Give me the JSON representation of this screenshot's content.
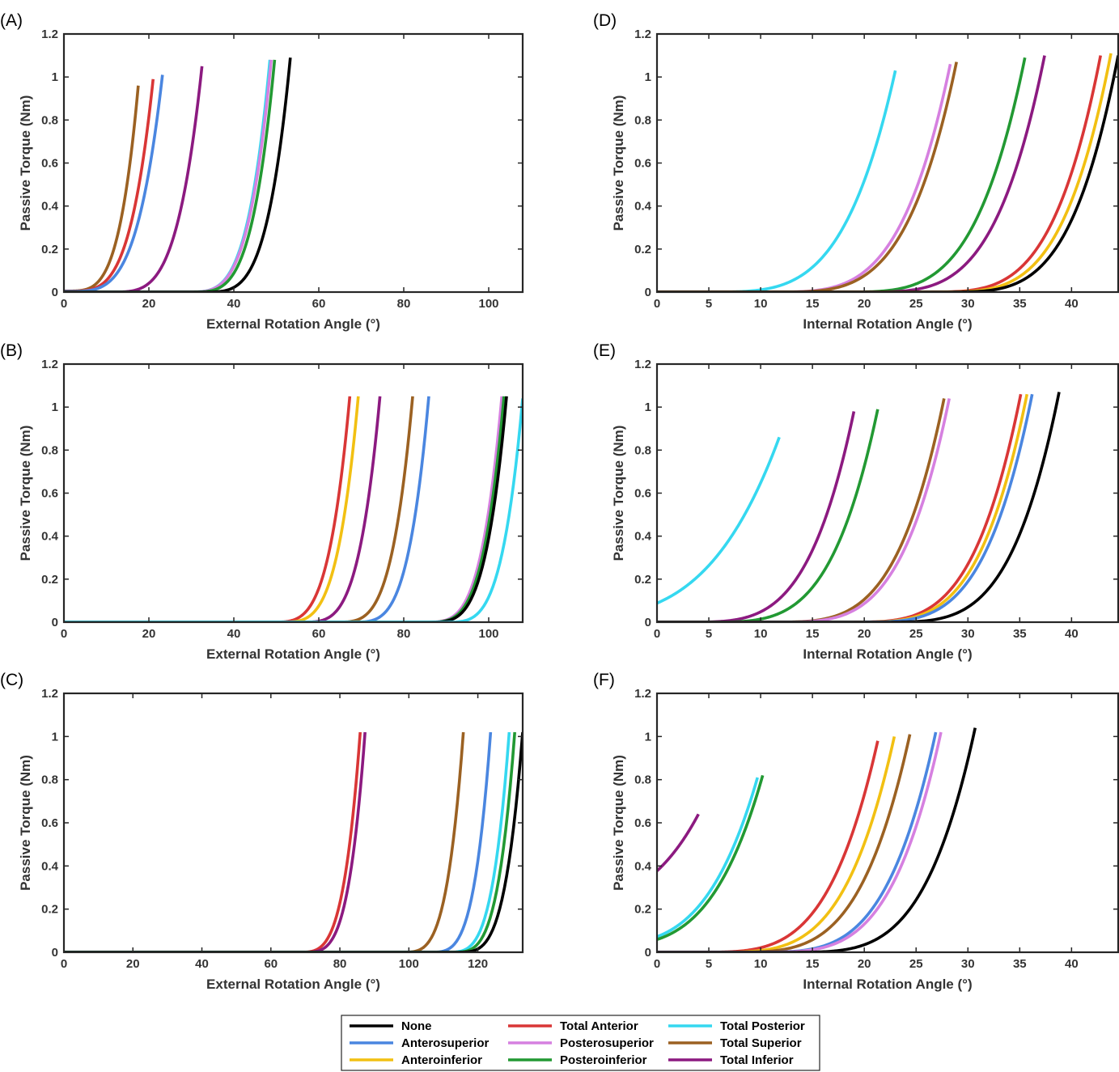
{
  "colors": {
    "None": "#000000",
    "Anterosuperior": "#4a86e0",
    "Anteroinferior": "#f2c012",
    "Total Anterior": "#d93636",
    "Posterosuperior": "#d680e0",
    "Posteroinferior": "#229933",
    "Total Posterior": "#35d8f0",
    "Total Superior": "#9b6122",
    "Total Inferior": "#8c1a80"
  },
  "legend": [
    "None",
    "Total Anterior",
    "Total Posterior",
    "Anterosuperior",
    "Posterosuperior",
    "Total Superior",
    "Anteroinferior",
    "Posteroinferior",
    "Total Inferior"
  ],
  "chart_data": [
    {
      "panel": "(A)",
      "type": "line",
      "xlabel": "External Rotation Angle (°)",
      "ylabel": "Passive Torque (Nm)",
      "xlim": [
        0,
        108
      ],
      "ylim": [
        0,
        1.2
      ],
      "xticks": [
        0,
        20,
        40,
        60,
        80,
        100
      ],
      "yticks": [
        0,
        0.2,
        0.4,
        0.6,
        0.8,
        1,
        1.2
      ],
      "series": [
        {
          "name": "Total Superior",
          "onset": 0,
          "end_x": 17.5,
          "end_y": 0.96,
          "y0": 0.005
        },
        {
          "name": "Total Anterior",
          "onset": 0,
          "end_x": 21.0,
          "end_y": 0.99,
          "y0": 0.004
        },
        {
          "name": "Anterosuperior",
          "onset": 0,
          "end_x": 23.2,
          "end_y": 1.01,
          "y0": 0.003
        },
        {
          "name": "Total Inferior",
          "onset": 10,
          "end_x": 32.5,
          "end_y": 1.05,
          "y0": 0
        },
        {
          "name": "Total Posterior",
          "onset": 28,
          "end_x": 48.5,
          "end_y": 1.08,
          "y0": 0
        },
        {
          "name": "Posterosuperior",
          "onset": 28,
          "end_x": 48.8,
          "end_y": 1.08,
          "y0": 0
        },
        {
          "name": "Posteroinferior",
          "onset": 29,
          "end_x": 49.6,
          "end_y": 1.08,
          "y0": 0
        },
        {
          "name": "None",
          "onset": 32,
          "end_x": 53.3,
          "end_y": 1.09,
          "y0": 0
        }
      ]
    },
    {
      "panel": "(B)",
      "type": "line",
      "xlabel": "External Rotation Angle (°)",
      "ylabel": "Passive Torque (Nm)",
      "xlim": [
        0,
        108
      ],
      "ylim": [
        0,
        1.2
      ],
      "xticks": [
        0,
        20,
        40,
        60,
        80,
        100
      ],
      "yticks": [
        0,
        0.2,
        0.4,
        0.6,
        0.8,
        1,
        1.2
      ],
      "series": [
        {
          "name": "Total Anterior",
          "onset": 48,
          "end_x": 67.3,
          "end_y": 1.05,
          "y0": 0
        },
        {
          "name": "Anteroinferior",
          "onset": 50,
          "end_x": 69.3,
          "end_y": 1.05,
          "y0": 0
        },
        {
          "name": "Total Inferior",
          "onset": 55,
          "end_x": 74.4,
          "end_y": 1.05,
          "y0": 0
        },
        {
          "name": "Total Superior",
          "onset": 63,
          "end_x": 82.1,
          "end_y": 1.05,
          "y0": 0
        },
        {
          "name": "Anterosuperior",
          "onset": 67,
          "end_x": 85.9,
          "end_y": 1.05,
          "y0": 0
        },
        {
          "name": "Posterosuperior",
          "onset": 84,
          "end_x": 103.1,
          "end_y": 1.05,
          "y0": 0
        },
        {
          "name": "Posteroinferior",
          "onset": 84.5,
          "end_x": 103.6,
          "end_y": 1.05,
          "y0": 0
        },
        {
          "name": "None",
          "onset": 85,
          "end_x": 104.2,
          "end_y": 1.05,
          "y0": 0
        },
        {
          "name": "Total Posterior",
          "onset": 89,
          "end_x": 108.0,
          "end_y": 1.04,
          "y0": 0
        }
      ]
    },
    {
      "panel": "(C)",
      "type": "line",
      "xlabel": "External Rotation Angle (°)",
      "ylabel": "Passive Torque (Nm)",
      "xlim": [
        0,
        133
      ],
      "ylim": [
        0,
        1.2
      ],
      "xticks": [
        0,
        20,
        40,
        60,
        80,
        100,
        120
      ],
      "yticks": [
        0,
        0.2,
        0.4,
        0.6,
        0.8,
        1,
        1.2
      ],
      "series": [
        {
          "name": "Total Anterior",
          "onset": 67,
          "end_x": 85.9,
          "end_y": 1.02,
          "y0": 0
        },
        {
          "name": "Total Inferior",
          "onset": 68.5,
          "end_x": 87.3,
          "end_y": 1.02,
          "y0": 0
        },
        {
          "name": "Total Superior",
          "onset": 97,
          "end_x": 115.8,
          "end_y": 1.02,
          "y0": 0
        },
        {
          "name": "Anterosuperior",
          "onset": 105,
          "end_x": 123.7,
          "end_y": 1.02,
          "y0": 0
        },
        {
          "name": "Total Posterior",
          "onset": 110,
          "end_x": 129.1,
          "end_y": 1.02,
          "y0": 0
        },
        {
          "name": "Posteroinferior",
          "onset": 111.5,
          "end_x": 130.7,
          "end_y": 1.02,
          "y0": 0
        },
        {
          "name": "None",
          "onset": 113,
          "end_x": 133.0,
          "end_y": 1.02,
          "y0": 0
        }
      ]
    },
    {
      "panel": "(D)",
      "type": "line",
      "xlabel": "Internal Rotation Angle (°)",
      "ylabel": "Passive Torque (Nm)",
      "xlim": [
        0,
        44.5
      ],
      "ylim": [
        0,
        1.2
      ],
      "xticks": [
        0,
        5,
        10,
        15,
        20,
        25,
        30,
        35,
        40
      ],
      "yticks": [
        0,
        0.2,
        0.4,
        0.6,
        0.8,
        1,
        1.2
      ],
      "series": [
        {
          "name": "Total Posterior",
          "onset": 4,
          "end_x": 23.0,
          "end_y": 1.03,
          "y0": 0
        },
        {
          "name": "Posterosuperior",
          "onset": 10,
          "end_x": 28.3,
          "end_y": 1.06,
          "y0": 0
        },
        {
          "name": "Total Superior",
          "onset": 10.5,
          "end_x": 28.9,
          "end_y": 1.07,
          "y0": 0
        },
        {
          "name": "Posteroinferior",
          "onset": 17,
          "end_x": 35.5,
          "end_y": 1.09,
          "y0": 0
        },
        {
          "name": "Total Inferior",
          "onset": 19,
          "end_x": 37.4,
          "end_y": 1.1,
          "y0": 0
        },
        {
          "name": "Total Anterior",
          "onset": 25,
          "end_x": 42.8,
          "end_y": 1.1,
          "y0": 0
        },
        {
          "name": "Anteroinferior",
          "onset": 26,
          "end_x": 43.8,
          "end_y": 1.11,
          "y0": 0
        },
        {
          "name": "None",
          "onset": 27,
          "end_x": 44.5,
          "end_y": 1.1,
          "y0": 0
        }
      ]
    },
    {
      "panel": "(E)",
      "type": "line",
      "xlabel": "Internal Rotation Angle (°)",
      "ylabel": "Passive Torque (Nm)",
      "xlim": [
        0,
        44.5
      ],
      "ylim": [
        0,
        1.2
      ],
      "xticks": [
        0,
        5,
        10,
        15,
        20,
        25,
        30,
        35,
        40
      ],
      "yticks": [
        0,
        0.2,
        0.4,
        0.6,
        0.8,
        1,
        1.2
      ],
      "series": [
        {
          "name": "Total Posterior",
          "onset": -14,
          "end_x": 11.8,
          "end_y": 0.86,
          "y0": 0.015
        },
        {
          "name": "Total Inferior",
          "onset": 2,
          "end_x": 19.0,
          "end_y": 0.98,
          "y0": 0
        },
        {
          "name": "Posteroinferior",
          "onset": 4,
          "end_x": 21.3,
          "end_y": 0.99,
          "y0": 0
        },
        {
          "name": "Total Superior",
          "onset": 10,
          "end_x": 27.7,
          "end_y": 1.04,
          "y0": 0
        },
        {
          "name": "Posterosuperior",
          "onset": 10.5,
          "end_x": 28.2,
          "end_y": 1.04,
          "y0": 0
        },
        {
          "name": "Total Anterior",
          "onset": 17.5,
          "end_x": 35.1,
          "end_y": 1.06,
          "y0": 0
        },
        {
          "name": "Anteroinferior",
          "onset": 18,
          "end_x": 35.7,
          "end_y": 1.06,
          "y0": 0
        },
        {
          "name": "Anterosuperior",
          "onset": 18.5,
          "end_x": 36.2,
          "end_y": 1.06,
          "y0": 0
        },
        {
          "name": "None",
          "onset": 21,
          "end_x": 38.8,
          "end_y": 1.07,
          "y0": 0
        }
      ]
    },
    {
      "panel": "(F)",
      "type": "line",
      "xlabel": "Internal Rotation Angle (°)",
      "ylabel": "Passive Torque (Nm)",
      "xlim": [
        0,
        44.5
      ],
      "ylim": [
        0,
        1.2
      ],
      "xticks": [
        0,
        5,
        10,
        15,
        20,
        25,
        30,
        35,
        40
      ],
      "yticks": [
        0,
        0.2,
        0.4,
        0.6,
        0.8,
        1,
        1.2
      ],
      "series": [
        {
          "name": "Total Inferior",
          "onset": -15,
          "end_x": 4.0,
          "end_y": 0.64,
          "y0": 0.21
        },
        {
          "name": "Total Posterior",
          "onset": -9,
          "end_x": 9.7,
          "end_y": 0.81,
          "y0": 0.03
        },
        {
          "name": "Posteroinferior",
          "onset": -8.5,
          "end_x": 10.2,
          "end_y": 0.82,
          "y0": 0.025
        },
        {
          "name": "Total Anterior",
          "onset": 3,
          "end_x": 21.3,
          "end_y": 0.98,
          "y0": 0
        },
        {
          "name": "Anteroinferior",
          "onset": 4.5,
          "end_x": 22.9,
          "end_y": 1.0,
          "y0": 0
        },
        {
          "name": "Total Superior",
          "onset": 6,
          "end_x": 24.4,
          "end_y": 1.01,
          "y0": 0
        },
        {
          "name": "Anterosuperior",
          "onset": 8.5,
          "end_x": 26.9,
          "end_y": 1.02,
          "y0": 0
        },
        {
          "name": "Posterosuperior",
          "onset": 9,
          "end_x": 27.4,
          "end_y": 1.02,
          "y0": 0
        },
        {
          "name": "None",
          "onset": 12,
          "end_x": 30.7,
          "end_y": 1.04,
          "y0": 0
        }
      ]
    }
  ]
}
